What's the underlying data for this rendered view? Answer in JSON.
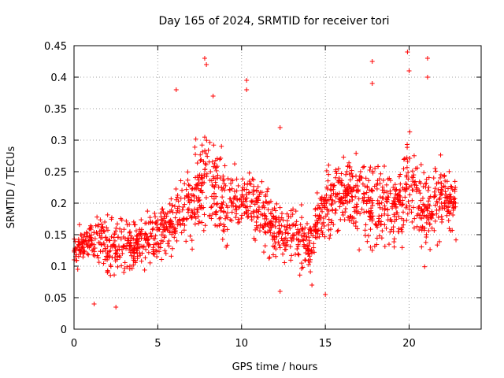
{
  "chart_data": {
    "type": "scatter",
    "title": "Day 165 of 2024, SRMTID for receiver tori",
    "xlabel": "GPS time / hours",
    "ylabel": "SRMTID / TECUs",
    "xlim": [
      0,
      24.3
    ],
    "ylim": [
      0,
      0.45
    ],
    "x_ticks": [
      0,
      5,
      10,
      15,
      20
    ],
    "x_tick_labels": [
      "0",
      "5",
      "10",
      "15",
      "20"
    ],
    "y_ticks": [
      0,
      0.05,
      0.1,
      0.15,
      0.2,
      0.25,
      0.3,
      0.35,
      0.4,
      0.45
    ],
    "y_tick_labels": [
      "0",
      "0.05",
      "0.1",
      "0.15",
      "0.2",
      "0.25",
      "0.3",
      "0.35",
      "0.4",
      "0.45"
    ],
    "grid": true,
    "marker": "+",
    "color": "#ff0000",
    "series": [
      {
        "name": "SRMTID",
        "x_range": [
          0,
          22.8
        ],
        "trend": [
          {
            "t": 0.0,
            "mean": 0.12,
            "spread": 0.03
          },
          {
            "t": 1.0,
            "mean": 0.14,
            "spread": 0.03
          },
          {
            "t": 2.0,
            "mean": 0.13,
            "spread": 0.05
          },
          {
            "t": 3.0,
            "mean": 0.14,
            "spread": 0.04
          },
          {
            "t": 4.0,
            "mean": 0.13,
            "spread": 0.04
          },
          {
            "t": 5.0,
            "mean": 0.15,
            "spread": 0.04
          },
          {
            "t": 6.0,
            "mean": 0.17,
            "spread": 0.05
          },
          {
            "t": 7.0,
            "mean": 0.2,
            "spread": 0.06
          },
          {
            "t": 8.0,
            "mean": 0.24,
            "spread": 0.08
          },
          {
            "t": 9.0,
            "mean": 0.19,
            "spread": 0.06
          },
          {
            "t": 10.0,
            "mean": 0.2,
            "spread": 0.05
          },
          {
            "t": 11.0,
            "mean": 0.2,
            "spread": 0.05
          },
          {
            "t": 12.0,
            "mean": 0.15,
            "spread": 0.05
          },
          {
            "t": 13.0,
            "mean": 0.15,
            "spread": 0.04
          },
          {
            "t": 14.0,
            "mean": 0.13,
            "spread": 0.04
          },
          {
            "t": 15.0,
            "mean": 0.2,
            "spread": 0.05
          },
          {
            "t": 16.0,
            "mean": 0.22,
            "spread": 0.05
          },
          {
            "t": 17.0,
            "mean": 0.21,
            "spread": 0.06
          },
          {
            "t": 18.0,
            "mean": 0.2,
            "spread": 0.06
          },
          {
            "t": 19.0,
            "mean": 0.19,
            "spread": 0.06
          },
          {
            "t": 20.0,
            "mean": 0.23,
            "spread": 0.07
          },
          {
            "t": 21.0,
            "mean": 0.19,
            "spread": 0.06
          },
          {
            "t": 22.0,
            "mean": 0.21,
            "spread": 0.05
          },
          {
            "t": 22.8,
            "mean": 0.2,
            "spread": 0.05
          }
        ],
        "peaks": [
          {
            "x": 7.8,
            "y": 0.43
          },
          {
            "x": 7.9,
            "y": 0.42
          },
          {
            "x": 6.1,
            "y": 0.38
          },
          {
            "x": 8.3,
            "y": 0.37
          },
          {
            "x": 10.3,
            "y": 0.395
          },
          {
            "x": 10.3,
            "y": 0.38
          },
          {
            "x": 17.8,
            "y": 0.425
          },
          {
            "x": 19.9,
            "y": 0.44
          },
          {
            "x": 20.0,
            "y": 0.41
          },
          {
            "x": 21.1,
            "y": 0.43
          },
          {
            "x": 21.1,
            "y": 0.4
          },
          {
            "x": 12.3,
            "y": 0.32
          },
          {
            "x": 17.8,
            "y": 0.39
          },
          {
            "x": 1.2,
            "y": 0.04
          },
          {
            "x": 2.5,
            "y": 0.035
          },
          {
            "x": 15.0,
            "y": 0.055
          },
          {
            "x": 14.2,
            "y": 0.07
          },
          {
            "x": 12.3,
            "y": 0.06
          }
        ]
      }
    ]
  }
}
